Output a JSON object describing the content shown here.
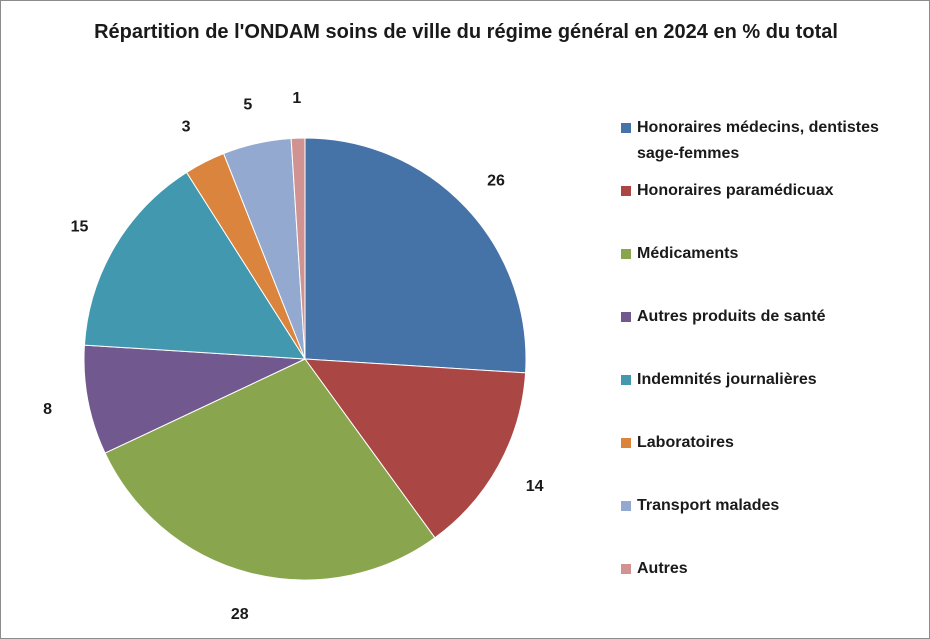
{
  "chart_data": {
    "type": "pie",
    "title": "Répartition de l'ONDAM soins de ville du régime général en 2024 en % du total",
    "legend_position": "right",
    "slices": [
      {
        "name": "Honoraires médecins, dentistes sage-femmes",
        "value": 26,
        "label": "26",
        "color": "#4572A7"
      },
      {
        "name": "Honoraires paramédicuax",
        "value": 14,
        "label": "14",
        "color": "#AA4643"
      },
      {
        "name": "Médicaments",
        "value": 28,
        "label": "28",
        "color": "#89A54E"
      },
      {
        "name": "Autres produits de santé",
        "value": 8,
        "label": "8",
        "color": "#71588F"
      },
      {
        "name": "Indemnités journalières",
        "value": 15,
        "label": "15",
        "color": "#4198AF"
      },
      {
        "name": "Laboratoires",
        "value": 3,
        "label": "3",
        "color": "#DB843D"
      },
      {
        "name": "Transport malades",
        "value": 5,
        "label": "5",
        "color": "#93A9CF"
      },
      {
        "name": "Autres",
        "value": 1,
        "label": "1",
        "color": "#D19392"
      }
    ]
  }
}
